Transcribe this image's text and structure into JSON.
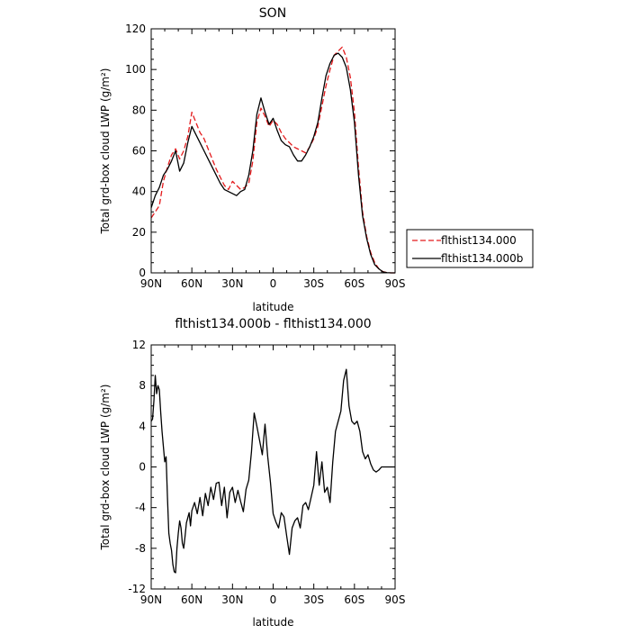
{
  "chart_data": [
    {
      "type": "line",
      "title": "SON",
      "xlabel": "latitude",
      "ylabel": "Total grd-box cloud LWP (g/m²)",
      "xlim": [
        90,
        -90
      ],
      "ylim": [
        0,
        120
      ],
      "x_ticks": [
        90,
        60,
        30,
        0,
        -30,
        -60,
        -90
      ],
      "x_tick_labels": [
        "90N",
        "60N",
        "30N",
        "0",
        "30S",
        "60S",
        "90S"
      ],
      "y_ticks": [
        0,
        20,
        40,
        60,
        80,
        100,
        120
      ],
      "y_tick_labels": [
        "0",
        "20",
        "40",
        "60",
        "80",
        "100",
        "120"
      ],
      "legend_position": "right",
      "series": [
        {
          "name": "flthist134.000",
          "color": "#e41a1c",
          "dash": "dashed",
          "x": [
            90,
            87,
            84,
            81,
            78,
            75,
            72,
            69,
            66,
            63,
            60,
            57,
            54,
            51,
            48,
            45,
            42,
            39,
            36,
            33,
            30,
            27,
            24,
            21,
            18,
            15,
            12,
            9,
            6,
            3,
            0,
            -3,
            -6,
            -9,
            -12,
            -15,
            -18,
            -21,
            -24,
            -27,
            -30,
            -33,
            -36,
            -39,
            -42,
            -45,
            -48,
            -51,
            -54,
            -57,
            -60,
            -63,
            -66,
            -69,
            -72,
            -75,
            -78,
            -81,
            -84,
            -87,
            -90
          ],
          "y": [
            27,
            30,
            33,
            45,
            52,
            58,
            61,
            56,
            60,
            67,
            79,
            74,
            69,
            66,
            61,
            56,
            51,
            47,
            43,
            41,
            45,
            43,
            41,
            42,
            44,
            55,
            74,
            81,
            77,
            72,
            75,
            73,
            69,
            66,
            64,
            62,
            61,
            60,
            59,
            62,
            66,
            72,
            82,
            92,
            100,
            107,
            109,
            111,
            106,
            96,
            79,
            52,
            30,
            18,
            10,
            5,
            2,
            0.6,
            0.1,
            0,
            0
          ]
        },
        {
          "name": "flthist134.000b",
          "color": "#000000",
          "dash": "solid",
          "x": [
            90,
            87,
            84,
            81,
            78,
            75,
            72,
            69,
            66,
            63,
            60,
            57,
            54,
            51,
            48,
            45,
            42,
            39,
            36,
            33,
            30,
            27,
            24,
            21,
            18,
            15,
            12,
            9,
            6,
            3,
            0,
            -3,
            -6,
            -9,
            -12,
            -15,
            -18,
            -21,
            -24,
            -27,
            -30,
            -33,
            -36,
            -39,
            -42,
            -45,
            -48,
            -51,
            -54,
            -57,
            -60,
            -63,
            -66,
            -69,
            -72,
            -75,
            -78,
            -81,
            -84,
            -87,
            -90
          ],
          "y": [
            32,
            38,
            42,
            48,
            51,
            55,
            60,
            50,
            54,
            64,
            72,
            68,
            64,
            60,
            56,
            52,
            48,
            44,
            41,
            40,
            39,
            38,
            40,
            41,
            48,
            60,
            78,
            86,
            79,
            73,
            76,
            70,
            65,
            63,
            62,
            58,
            55,
            55,
            58,
            62,
            67,
            74,
            86,
            97,
            103,
            107,
            108,
            106,
            101,
            90,
            74,
            48,
            28,
            17,
            9,
            4,
            2,
            0.5,
            0.1,
            0,
            0
          ]
        }
      ]
    },
    {
      "type": "line",
      "title": "flthist134.000b - flthist134.000",
      "xlabel": "latitude",
      "ylabel": "Total grd-box cloud LWP (g/m²)",
      "xlim": [
        90,
        -90
      ],
      "ylim": [
        -12,
        12
      ],
      "x_ticks": [
        90,
        60,
        30,
        0,
        -30,
        -60,
        -90
      ],
      "x_tick_labels": [
        "90N",
        "60N",
        "30N",
        "0",
        "30S",
        "60S",
        "90S"
      ],
      "y_ticks": [
        -12,
        -8,
        -4,
        0,
        4,
        8,
        12
      ],
      "y_tick_labels": [
        "-12",
        "-8",
        "-4",
        "0",
        "4",
        "8",
        "12"
      ],
      "series": [
        {
          "color": "#000000",
          "dash": "solid",
          "x": [
            90,
            89,
            88,
            87,
            86,
            85,
            84,
            83,
            82,
            81,
            80,
            79,
            78,
            77,
            76,
            75,
            74,
            73,
            72,
            71,
            70,
            69,
            68,
            67,
            66,
            65,
            64,
            63,
            62,
            61,
            60,
            58,
            56,
            54,
            52,
            50,
            48,
            46,
            44,
            42,
            40,
            38,
            36,
            34,
            32,
            30,
            28,
            26,
            24,
            22,
            20,
            18,
            16,
            14,
            12,
            10,
            8,
            6,
            4,
            2,
            0,
            -2,
            -4,
            -6,
            -8,
            -10,
            -12,
            -14,
            -16,
            -18,
            -20,
            -22,
            -24,
            -26,
            -28,
            -30,
            -32,
            -34,
            -36,
            -38,
            -40,
            -42,
            -44,
            -46,
            -48,
            -50,
            -52,
            -54,
            -56,
            -58,
            -60,
            -62,
            -64,
            -66,
            -68,
            -70,
            -72,
            -74,
            -76,
            -78,
            -80,
            -82,
            -84,
            -86,
            -88,
            -90
          ],
          "y": [
            4.5,
            4.7,
            6.5,
            9.0,
            7.2,
            8.0,
            7.6,
            5.4,
            3.5,
            2.0,
            0.5,
            1.0,
            -3.0,
            -6.5,
            -7.5,
            -8.2,
            -9.6,
            -10.3,
            -10.4,
            -8.0,
            -6.5,
            -5.3,
            -6.0,
            -7.5,
            -8.0,
            -6.8,
            -5.5,
            -5.0,
            -4.5,
            -5.8,
            -4.3,
            -3.5,
            -4.6,
            -3.0,
            -4.8,
            -2.6,
            -3.8,
            -2.0,
            -3.2,
            -1.6,
            -1.5,
            -3.8,
            -2.0,
            -5.0,
            -2.5,
            -2.0,
            -3.5,
            -2.3,
            -3.4,
            -4.4,
            -2.2,
            -1.3,
            1.5,
            5.3,
            4.0,
            2.6,
            1.2,
            4.2,
            1.0,
            -1.5,
            -4.6,
            -5.4,
            -6.0,
            -4.5,
            -4.9,
            -6.8,
            -8.6,
            -6.0,
            -5.3,
            -5.0,
            -6.0,
            -3.8,
            -3.5,
            -4.2,
            -3.0,
            -1.8,
            1.5,
            -1.8,
            0.5,
            -2.5,
            -2.0,
            -3.5,
            0.5,
            3.5,
            4.5,
            5.5,
            8.5,
            9.6,
            6.0,
            4.5,
            4.2,
            4.5,
            3.5,
            1.5,
            0.8,
            1.2,
            0.3,
            -0.3,
            -0.5,
            -0.3,
            0.0,
            0.0,
            0.0,
            0.0,
            0.0,
            0.0
          ]
        }
      ]
    }
  ]
}
